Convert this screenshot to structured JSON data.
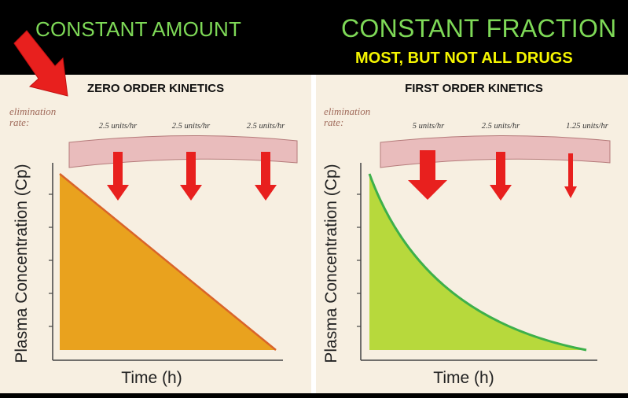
{
  "header": {
    "left_title": "CONSTANT AMOUNT",
    "right_title": "CONSTANT FRACTION",
    "right_subtitle": "MOST, BUT NOT ALL DRUGS"
  },
  "colors": {
    "header_green": "#7ed957",
    "header_yellow": "#f5f500",
    "arrow_red": "#e8201e",
    "zero_order_fill": "#e9a21e",
    "zero_order_line": "#d9642a",
    "first_order_fill": "#b7d93c",
    "first_order_line": "#3db04a",
    "panel_bg": "#f7efe1",
    "band": "#e9bcbc",
    "elimination_label": "#a06a5a"
  },
  "panels": [
    {
      "title": "ZERO ORDER KINETICS",
      "elimination_label_line1": "elimination",
      "elimination_label_line2": "rate:",
      "rates": [
        "2.5 units/hr",
        "2.5 units/hr",
        "2.5 units/hr"
      ],
      "arrow_sizes": [
        "medium",
        "medium",
        "medium"
      ],
      "ylabel": "Plasma Concentration (Cp)",
      "xlabel": "Time (h)"
    },
    {
      "title": "FIRST ORDER KINETICS",
      "elimination_label_line1": "elimination",
      "elimination_label_line2": "rate:",
      "rates": [
        "5 units/hr",
        "2.5 units/hr",
        "1.25 units/hr"
      ],
      "arrow_sizes": [
        "large",
        "medium",
        "small"
      ],
      "ylabel": "Plasma Concentration (Cp)",
      "xlabel": "Time (h)"
    }
  ]
}
